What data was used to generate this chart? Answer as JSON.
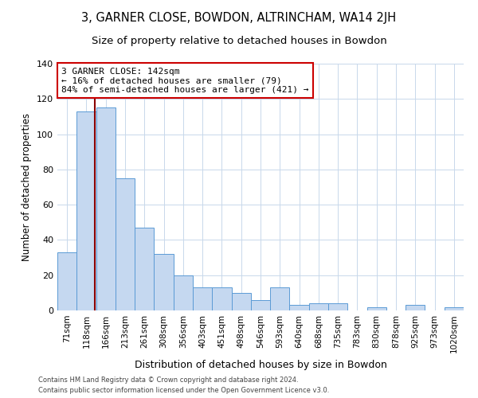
{
  "title1": "3, GARNER CLOSE, BOWDON, ALTRINCHAM, WA14 2JH",
  "title2": "Size of property relative to detached houses in Bowdon",
  "xlabel": "Distribution of detached houses by size in Bowdon",
  "ylabel": "Number of detached properties",
  "categories": [
    "71sqm",
    "118sqm",
    "166sqm",
    "213sqm",
    "261sqm",
    "308sqm",
    "356sqm",
    "403sqm",
    "451sqm",
    "498sqm",
    "546sqm",
    "593sqm",
    "640sqm",
    "688sqm",
    "735sqm",
    "783sqm",
    "830sqm",
    "878sqm",
    "925sqm",
    "973sqm",
    "1020sqm"
  ],
  "values": [
    33,
    113,
    115,
    75,
    47,
    32,
    20,
    13,
    13,
    10,
    6,
    13,
    3,
    4,
    4,
    0,
    2,
    0,
    3,
    0,
    2
  ],
  "bar_color": "#c5d8f0",
  "bar_edge_color": "#5b9bd5",
  "marker_label": "3 GARNER CLOSE: 142sqm",
  "annotation_line1": "← 16% of detached houses are smaller (79)",
  "annotation_line2": "84% of semi-detached houses are larger (421) →",
  "vline_color": "#8b0000",
  "vline_x": 1.45,
  "annotation_box_edge": "#cc0000",
  "footer1": "Contains HM Land Registry data © Crown copyright and database right 2024.",
  "footer2": "Contains public sector information licensed under the Open Government Licence v3.0.",
  "ylim": [
    0,
    140
  ],
  "yticks": [
    0,
    20,
    40,
    60,
    80,
    100,
    120,
    140
  ],
  "bg_color": "#ffffff",
  "grid_color": "#c8d8eb",
  "title1_fontsize": 10.5,
  "title2_fontsize": 9.5,
  "bar_linewidth": 0.7
}
